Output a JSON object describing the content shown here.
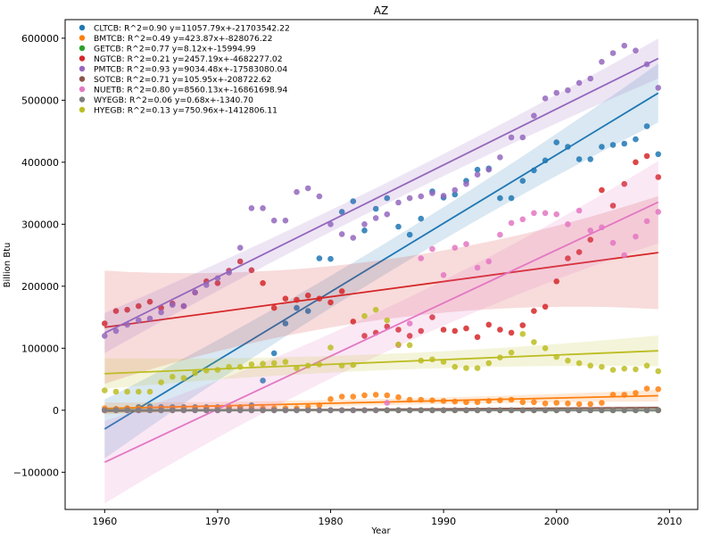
{
  "chart_data": {
    "type": "scatter",
    "title": "AZ",
    "xlabel": "Year",
    "ylabel": "Billion Btu",
    "xlim": [
      1956.5,
      2012.5
    ],
    "ylim": [
      -160000,
      630000
    ],
    "xticks": [
      1960,
      1970,
      1980,
      1990,
      2000,
      2010
    ],
    "yticks": [
      -100000,
      0,
      100000,
      200000,
      300000,
      400000,
      500000,
      600000
    ],
    "ytick_labels": [
      "−100000",
      "0",
      "100000",
      "200000",
      "300000",
      "400000",
      "500000",
      "600000"
    ],
    "grid": false,
    "legend_position": "top-left",
    "x": [
      1960,
      1961,
      1962,
      1963,
      1964,
      1965,
      1966,
      1967,
      1968,
      1969,
      1970,
      1971,
      1972,
      1973,
      1974,
      1975,
      1976,
      1977,
      1978,
      1979,
      1980,
      1981,
      1982,
      1983,
      1984,
      1985,
      1986,
      1987,
      1988,
      1989,
      1990,
      1991,
      1992,
      1993,
      1994,
      1995,
      1996,
      1997,
      1998,
      1999,
      2000,
      2001,
      2002,
      2003,
      2004,
      2005,
      2006,
      2007,
      2008,
      2009
    ],
    "series": [
      {
        "name": "CLTCB",
        "legend": "CLTCB: R^2=0.90 y=11057.79x+-21703542.22",
        "color": "#1f77b4",
        "slope": 11057.79,
        "intercept": -21703542.22,
        "band": 25000,
        "values": [
          0,
          2000,
          3000,
          5000,
          6000,
          5000,
          5000,
          5000,
          5000,
          5000,
          5000,
          5000,
          5000,
          8000,
          48000,
          92000,
          140000,
          165000,
          160000,
          245000,
          244000,
          320000,
          337000,
          290000,
          325000,
          342000,
          296000,
          283000,
          309000,
          353000,
          343000,
          348000,
          370000,
          388000,
          390000,
          342000,
          342000,
          370000,
          387000,
          403000,
          432000,
          425000,
          405000,
          405000,
          425000,
          428000,
          430000,
          437000,
          458000,
          413000
        ]
      },
      {
        "name": "BMTCB",
        "legend": "BMTCB: R^2=0.49 y=423.87x+-828076.22",
        "color": "#ff7f0e",
        "slope": 423.87,
        "intercept": -828076.22,
        "band": 5000,
        "values": [
          3000,
          2000,
          3000,
          3000,
          3000,
          3000,
          3000,
          3000,
          3000,
          3000,
          3000,
          3000,
          3000,
          3000,
          3000,
          3000,
          3000,
          3000,
          5000,
          8000,
          18000,
          22000,
          22000,
          24000,
          25000,
          24000,
          21000,
          17000,
          17000,
          16000,
          15000,
          14000,
          13000,
          13000,
          15000,
          16000,
          17000,
          13000,
          13000,
          11000,
          12000,
          11000,
          10000,
          10000,
          12000,
          25000,
          25000,
          28000,
          35000,
          34000
        ]
      },
      {
        "name": "GETCB",
        "legend": "GETCB: R^2=0.77 y=8.12x+-15994.99",
        "color": "#2ca02c",
        "slope": 8.12,
        "intercept": -15994.99,
        "band": 2000,
        "values": [
          0,
          0,
          0,
          0,
          0,
          0,
          0,
          0,
          0,
          0,
          0,
          0,
          0,
          0,
          0,
          0,
          0,
          0,
          0,
          0,
          0,
          0,
          0,
          0,
          0,
          0,
          0,
          0,
          0,
          0,
          0,
          0,
          0,
          0,
          0,
          0,
          0,
          0,
          0,
          0,
          0,
          0,
          0,
          0,
          0,
          0,
          0,
          0,
          0,
          0
        ]
      },
      {
        "name": "NGTCB",
        "legend": "NGTCB: R^2=0.21 y=2457.19x+-4682277.02",
        "color": "#d62728",
        "slope": 2457.19,
        "intercept": -4682277.02,
        "band": 48000,
        "values": [
          140000,
          160000,
          162000,
          168000,
          175000,
          165000,
          172000,
          168000,
          190000,
          208000,
          205000,
          225000,
          240000,
          226000,
          205000,
          165000,
          180000,
          178000,
          185000,
          180000,
          174000,
          192000,
          143000,
          120000,
          125000,
          135000,
          130000,
          120000,
          128000,
          150000,
          130000,
          128000,
          132000,
          118000,
          138000,
          130000,
          125000,
          137000,
          160000,
          167000,
          208000,
          245000,
          255000,
          275000,
          355000,
          330000,
          365000,
          400000,
          410000,
          376000
        ]
      },
      {
        "name": "PMTCB",
        "legend": "PMTCB: R^2=0.93 y=9034.48x+-17583080.04",
        "color": "#9467bd",
        "slope": 9034.48,
        "intercept": -17583080.04,
        "band": 17000,
        "values": [
          120000,
          128000,
          138000,
          145000,
          148000,
          158000,
          170000,
          168000,
          190000,
          202000,
          213000,
          222000,
          262000,
          326000,
          326000,
          306000,
          306000,
          352000,
          358000,
          345000,
          300000,
          284000,
          278000,
          300000,
          310000,
          316000,
          335000,
          342000,
          345000,
          350000,
          346000,
          355000,
          365000,
          380000,
          388000,
          408000,
          440000,
          440000,
          475000,
          503000,
          512000,
          516000,
          528000,
          535000,
          562000,
          576000,
          588000,
          580000,
          558000,
          520000
        ]
      },
      {
        "name": "SOTCB",
        "legend": "SOTCB: R^2=0.71 y=105.95x+-208722.62",
        "color": "#8c564b",
        "slope": 105.95,
        "intercept": -208722.62,
        "band": 1500,
        "values": [
          0,
          0,
          0,
          0,
          0,
          0,
          0,
          0,
          0,
          0,
          0,
          0,
          0,
          0,
          0,
          0,
          0,
          0,
          0,
          0,
          0,
          0,
          0,
          0,
          0,
          0,
          0,
          0,
          0,
          0,
          0,
          0,
          0,
          0,
          0,
          0,
          0,
          0,
          0,
          0,
          0,
          0,
          0,
          0,
          0,
          0,
          0,
          0,
          0,
          0
        ]
      },
      {
        "name": "NUETB",
        "legend": "NUETB: R^2=0.80 y=8560.13x+-16861698.94",
        "color": "#e377c2",
        "slope": 8560.13,
        "intercept": -16861698.94,
        "band": 35000,
        "values": [
          0,
          0,
          0,
          0,
          0,
          0,
          0,
          0,
          0,
          0,
          0,
          0,
          0,
          0,
          0,
          0,
          0,
          0,
          0,
          0,
          0,
          0,
          0,
          0,
          0,
          12000,
          105000,
          140000,
          245000,
          260000,
          218000,
          262000,
          268000,
          230000,
          240000,
          283000,
          302000,
          308000,
          318000,
          318000,
          316000,
          300000,
          322000,
          290000,
          295000,
          270000,
          250000,
          280000,
          305000,
          320000
        ]
      },
      {
        "name": "WYEGB",
        "legend": "WYEGB: R^2=0.06 y=0.68x+-1340.70",
        "color": "#7f7f7f",
        "slope": 0.68,
        "intercept": -1340.7,
        "band": 1500,
        "values": [
          0,
          0,
          0,
          0,
          0,
          0,
          0,
          0,
          0,
          0,
          0,
          0,
          0,
          0,
          0,
          0,
          0,
          0,
          0,
          0,
          0,
          0,
          0,
          0,
          0,
          0,
          0,
          0,
          0,
          0,
          0,
          0,
          0,
          0,
          0,
          0,
          0,
          0,
          0,
          0,
          0,
          0,
          0,
          0,
          0,
          0,
          0,
          0,
          0,
          0
        ]
      },
      {
        "name": "HYEGB",
        "legend": "HYEGB: R^2=0.13 y=750.96x+-1412806.11",
        "color": "#bcbd22",
        "slope": 750.96,
        "intercept": -1412806.11,
        "band": 13000,
        "values": [
          32000,
          30000,
          30000,
          30000,
          30000,
          45000,
          54000,
          52000,
          60000,
          64000,
          65000,
          70000,
          70000,
          74000,
          75000,
          76000,
          78000,
          68000,
          72000,
          74000,
          101000,
          72000,
          73000,
          152000,
          162000,
          145000,
          106000,
          105000,
          80000,
          82000,
          78000,
          70000,
          68000,
          68000,
          76000,
          85000,
          93000,
          123000,
          110000,
          100000,
          86000,
          80000,
          76000,
          72000,
          70000,
          65000,
          67000,
          66000,
          72000,
          63000
        ]
      }
    ]
  }
}
